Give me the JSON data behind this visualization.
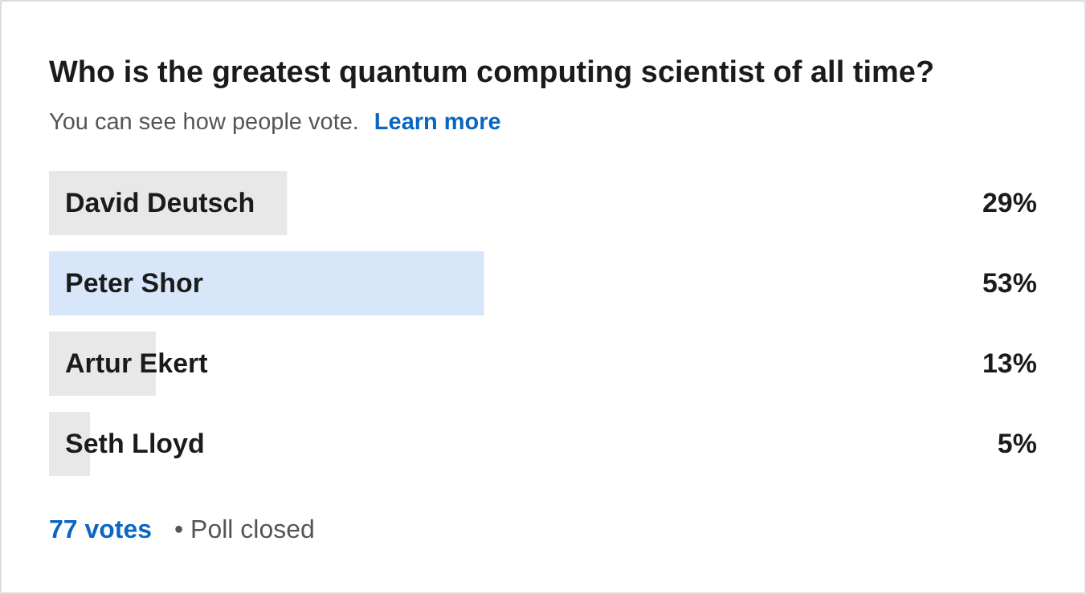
{
  "chart_data": {
    "type": "bar",
    "orientation": "horizontal",
    "title": "Who is the greatest quantum computing scientist of all time?",
    "subtitle": "You can see how people vote.",
    "categories": [
      "David Deutsch",
      "Peter Shor",
      "Artur Ekert",
      "Seth Lloyd"
    ],
    "values": [
      29,
      53,
      13,
      5
    ],
    "colors": [
      "#e8e8e8",
      "#d7e7f9",
      "#e8e8e8",
      "#e8e8e8"
    ],
    "value_labels": [
      "29%",
      "53%",
      "13%",
      "5%"
    ],
    "tick_labels": false,
    "annotations": [
      "Learn more",
      "77 votes",
      "• Poll closed"
    ]
  }
}
